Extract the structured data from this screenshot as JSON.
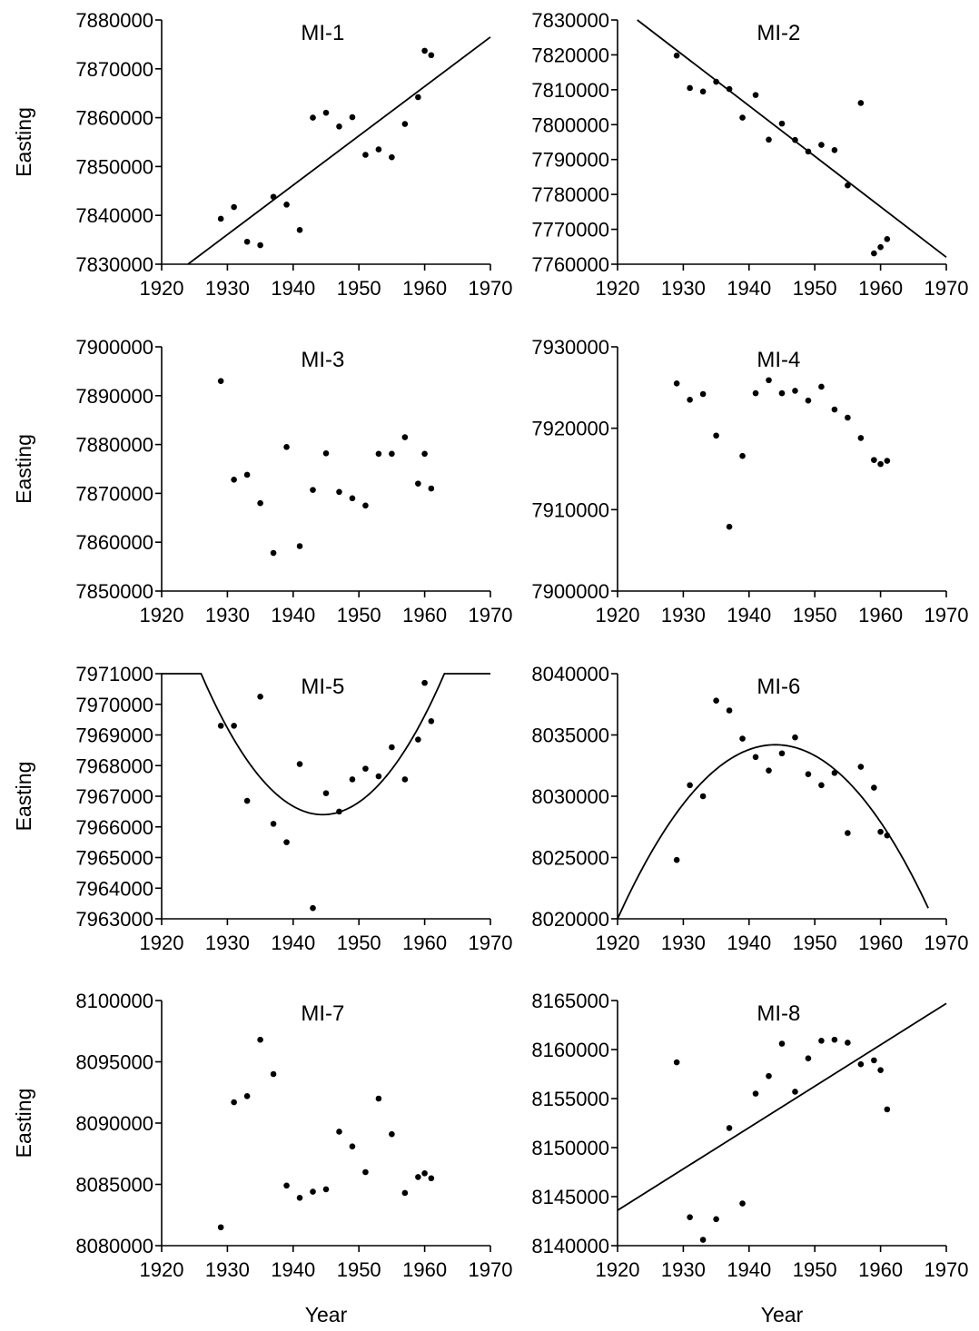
{
  "figure": {
    "xlabel": "Year",
    "ylabel": "Easting"
  },
  "chart_data": [
    {
      "type": "scatter",
      "title": "MI-1",
      "xlabel": "",
      "ylabel": "Easting",
      "xlim": [
        1920,
        1970
      ],
      "ylim": [
        7830000,
        7880000
      ],
      "x_ticks": [
        "1920",
        "1930",
        "1940",
        "1950",
        "1960",
        "1970"
      ],
      "y_ticks": [
        "7830000",
        "7840000",
        "7850000",
        "7860000",
        "7870000",
        "7880000"
      ],
      "points": {
        "x": [
          1929,
          1931,
          1933,
          1935,
          1937,
          1939,
          1941,
          1943,
          1945,
          1947,
          1949,
          1951,
          1953,
          1955,
          1957,
          1959,
          1960,
          1961
        ],
        "y": [
          7839300,
          7841700,
          7834600,
          7833900,
          7843800,
          7842200,
          7837000,
          7860000,
          7861000,
          7858200,
          7860100,
          7852400,
          7853500,
          7851900,
          7858700,
          7864200,
          7873700,
          7872800
        ]
      },
      "fit": {
        "kind": "line",
        "x": [
          1924,
          1970
        ],
        "y": [
          7830000,
          7876500
        ]
      }
    },
    {
      "type": "scatter",
      "title": "MI-2",
      "xlabel": "",
      "ylabel": "",
      "xlim": [
        1920,
        1970
      ],
      "ylim": [
        7760000,
        7830000
      ],
      "x_ticks": [
        "1920",
        "1930",
        "1940",
        "1950",
        "1960",
        "1970"
      ],
      "y_ticks": [
        "7760000",
        "7770000",
        "7780000",
        "7790000",
        "7800000",
        "7810000",
        "7820000",
        "7830000"
      ],
      "points": {
        "x": [
          1929,
          1931,
          1933,
          1935,
          1937,
          1939,
          1941,
          1943,
          1945,
          1947,
          1949,
          1951,
          1953,
          1955,
          1957,
          1959,
          1960,
          1961
        ],
        "y": [
          7819800,
          7810500,
          7809500,
          7812300,
          7810200,
          7802000,
          7808500,
          7795700,
          7800300,
          7795600,
          7792300,
          7794200,
          7792700,
          7782600,
          7806200,
          7763100,
          7764900,
          7767200
        ]
      },
      "fit": {
        "kind": "line",
        "x": [
          1923,
          1970
        ],
        "y": [
          7830000,
          7762000
        ]
      }
    },
    {
      "type": "scatter",
      "title": "MI-3",
      "xlabel": "",
      "ylabel": "Easting",
      "xlim": [
        1920,
        1970
      ],
      "ylim": [
        7850000,
        7900000
      ],
      "x_ticks": [
        "1920",
        "1930",
        "1940",
        "1950",
        "1960",
        "1970"
      ],
      "y_ticks": [
        "7850000",
        "7860000",
        "7870000",
        "7880000",
        "7890000",
        "7900000"
      ],
      "points": {
        "x": [
          1929,
          1931,
          1933,
          1935,
          1937,
          1939,
          1941,
          1943,
          1945,
          1947,
          1949,
          1951,
          1953,
          1955,
          1957,
          1959,
          1960,
          1961
        ],
        "y": [
          7893000,
          7872800,
          7873800,
          7868000,
          7857800,
          7879500,
          7859200,
          7870700,
          7878200,
          7870300,
          7869000,
          7867500,
          7878100,
          7878100,
          7881500,
          7872000,
          7878100,
          7871000
        ]
      }
    },
    {
      "type": "scatter",
      "title": "MI-4",
      "xlabel": "",
      "ylabel": "",
      "xlim": [
        1920,
        1970
      ],
      "ylim": [
        7900000,
        7930000
      ],
      "x_ticks": [
        "1920",
        "1930",
        "1940",
        "1950",
        "1960",
        "1970"
      ],
      "y_ticks": [
        "7900000",
        "7910000",
        "7920000",
        "7930000"
      ],
      "points": {
        "x": [
          1929,
          1931,
          1933,
          1935,
          1937,
          1939,
          1941,
          1943,
          1945,
          1947,
          1949,
          1951,
          1953,
          1955,
          1957,
          1959,
          1960,
          1961
        ],
        "y": [
          7925500,
          7923500,
          7924200,
          7919100,
          7907900,
          7916600,
          7924300,
          7925900,
          7924300,
          7924600,
          7923400,
          7925100,
          7922300,
          7921300,
          7918800,
          7916100,
          7915600,
          7916000
        ]
      }
    },
    {
      "type": "scatter",
      "title": "MI-5",
      "xlabel": "",
      "ylabel": "Easting",
      "xlim": [
        1920,
        1970
      ],
      "ylim": [
        7963000,
        7971000
      ],
      "x_ticks": [
        "1920",
        "1930",
        "1940",
        "1950",
        "1960",
        "1970"
      ],
      "y_ticks": [
        "7963000",
        "7964000",
        "7965000",
        "7966000",
        "7967000",
        "7968000",
        "7969000",
        "7970000",
        "7971000"
      ],
      "points": {
        "x": [
          1929,
          1931,
          1933,
          1935,
          1937,
          1939,
          1941,
          1943,
          1945,
          1947,
          1949,
          1951,
          1953,
          1955,
          1957,
          1959,
          1960,
          1961
        ],
        "y": [
          7969300,
          7969300,
          7966850,
          7970250,
          7966100,
          7965500,
          7968050,
          7963350,
          7967100,
          7966500,
          7967550,
          7967900,
          7967650,
          7968600,
          7967550,
          7968850,
          7970700,
          7969450
        ]
      },
      "fit": {
        "kind": "parabola",
        "vertex_x": 1944.5,
        "vertex_y": 7966400,
        "x_range": [
          1926,
          1963
        ],
        "y_cap": 7971000
      }
    },
    {
      "type": "scatter",
      "title": "MI-6",
      "xlabel": "",
      "ylabel": "",
      "xlim": [
        1920,
        1970
      ],
      "ylim": [
        8020000,
        8040000
      ],
      "x_ticks": [
        "1920",
        "1930",
        "1940",
        "1950",
        "1960",
        "1970"
      ],
      "y_ticks": [
        "8020000",
        "8025000",
        "8030000",
        "8035000",
        "8040000"
      ],
      "points": {
        "x": [
          1929,
          1931,
          1933,
          1935,
          1937,
          1939,
          1941,
          1943,
          1945,
          1947,
          1949,
          1951,
          1953,
          1955,
          1957,
          1959,
          1960,
          1961
        ],
        "y": [
          8024800,
          8030900,
          8030000,
          8037800,
          8037000,
          8034700,
          8033200,
          8032100,
          8033500,
          8034800,
          8031800,
          8030900,
          8031900,
          8027000,
          8032400,
          8030700,
          8027100,
          8026800
        ]
      },
      "fit": {
        "kind": "parabola",
        "vertex_x": 1944,
        "vertex_y": 8034200,
        "x_range": [
          1920,
          1967.3
        ]
      }
    },
    {
      "type": "scatter",
      "title": "MI-7",
      "xlabel": "Year",
      "ylabel": "Easting",
      "xlim": [
        1920,
        1970
      ],
      "ylim": [
        8080000,
        8100000
      ],
      "x_ticks": [
        "1920",
        "1930",
        "1940",
        "1950",
        "1960",
        "1970"
      ],
      "y_ticks": [
        "8080000",
        "8085000",
        "8090000",
        "8095000",
        "8100000"
      ],
      "points": {
        "x": [
          1929,
          1931,
          1933,
          1935,
          1937,
          1939,
          1941,
          1943,
          1945,
          1947,
          1949,
          1951,
          1953,
          1955,
          1957,
          1959,
          1960,
          1961
        ],
        "y": [
          8081500,
          8091700,
          8092200,
          8096800,
          8094000,
          8084900,
          8083900,
          8084400,
          8084600,
          8089300,
          8088100,
          8086000,
          8092000,
          8089100,
          8084300,
          8085600,
          8085900,
          8085500
        ]
      }
    },
    {
      "type": "scatter",
      "title": "MI-8",
      "xlabel": "Year",
      "ylabel": "",
      "xlim": [
        1920,
        1970
      ],
      "ylim": [
        8140000,
        8165000
      ],
      "x_ticks": [
        "1920",
        "1930",
        "1940",
        "1950",
        "1960",
        "1970"
      ],
      "y_ticks": [
        "8140000",
        "8145000",
        "8150000",
        "8155000",
        "8160000",
        "8165000"
      ],
      "points": {
        "x": [
          1929,
          1931,
          1933,
          1935,
          1937,
          1939,
          1941,
          1943,
          1945,
          1947,
          1949,
          1951,
          1953,
          1955,
          1957,
          1959,
          1960,
          1961
        ],
        "y": [
          8158700,
          8142900,
          8140600,
          8142700,
          8152000,
          8144300,
          8155500,
          8157300,
          8160600,
          8155700,
          8159100,
          8160900,
          8161000,
          8160700,
          8158500,
          8158900,
          8157900,
          8153900
        ]
      },
      "fit": {
        "kind": "line",
        "x": [
          1920,
          1970
        ],
        "y": [
          8143600,
          8164700
        ]
      }
    }
  ]
}
